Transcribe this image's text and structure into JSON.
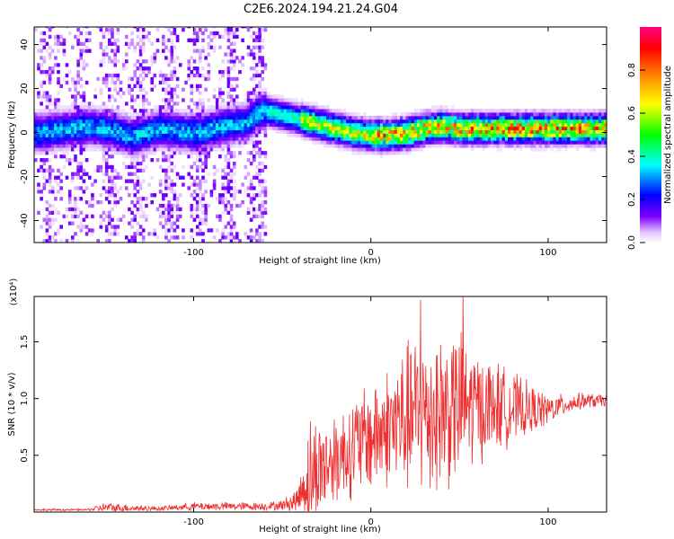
{
  "title": "C2E6.2024.194.21.24.G04",
  "chart_data": [
    {
      "type": "heatmap",
      "xlabel": "Height of straight line (km)",
      "ylabel": "Frequency (Hz)",
      "xlim": [
        -190,
        133
      ],
      "ylim": [
        -50,
        48
      ],
      "x_ticks": [
        -100,
        0,
        100
      ],
      "y_ticks": [
        -40,
        -20,
        0,
        20,
        40
      ],
      "colorbar": {
        "label": "Normalized spectral amplitude",
        "range": [
          0,
          1
        ],
        "ticks": [
          0.0,
          0.2,
          0.4,
          0.6,
          0.8
        ],
        "colors": [
          "#ffffff",
          "#e0c0ff",
          "#8000ff",
          "#0000ff",
          "#00ffff",
          "#00ff00",
          "#ffff00",
          "#ff8000",
          "#ff0000",
          "#ff0080"
        ]
      },
      "ridge": {
        "x": [
          -190,
          -170,
          -160,
          -145,
          -135,
          -120,
          -100,
          -85,
          -70,
          -65,
          -60,
          -55,
          -50,
          -40,
          -30,
          -20,
          -10,
          0,
          10,
          20,
          30,
          40,
          50,
          60,
          80,
          100,
          120,
          133
        ],
        "frequency": [
          -1,
          1,
          2,
          0,
          -3,
          1,
          -1,
          2,
          4,
          8,
          9,
          8,
          7,
          5,
          3,
          1,
          -1,
          -2,
          -2,
          -1,
          1,
          2,
          1,
          1,
          1,
          1,
          1,
          1
        ]
      },
      "broadband_noise_region": [
        -190,
        -60
      ]
    },
    {
      "type": "line",
      "xlabel": "Height of straight line (km)",
      "ylabel": "SNR (10 * v/v)",
      "y_multiplier": "(x10⁴)",
      "xlim": [
        -190,
        133
      ],
      "ylim": [
        0,
        1.9
      ],
      "x_ticks": [
        -100,
        0,
        100
      ],
      "y_ticks": [
        0.5,
        1.0,
        1.5
      ],
      "color": "#ee3030",
      "series": [
        {
          "envelope_x": [
            -190,
            -160,
            -150,
            -120,
            -100,
            -80,
            -60,
            -50,
            -42,
            -38,
            -35,
            -30,
            -20,
            -10,
            0,
            10,
            20,
            30,
            40,
            50,
            60,
            70,
            80,
            90,
            100,
            110,
            120,
            133
          ],
          "baseline": [
            0.02,
            0.02,
            0.04,
            0.03,
            0.05,
            0.05,
            0.05,
            0.06,
            0.1,
            0.22,
            0.3,
            0.38,
            0.48,
            0.57,
            0.66,
            0.75,
            0.82,
            0.87,
            0.9,
            0.92,
            0.93,
            0.93,
            0.92,
            0.9,
            0.9,
            0.95,
            0.98,
            0.98
          ],
          "spike_amplitude": [
            0.01,
            0.01,
            0.05,
            0.02,
            0.04,
            0.04,
            0.04,
            0.05,
            0.12,
            0.25,
            0.6,
            0.5,
            0.45,
            0.5,
            0.55,
            0.6,
            0.75,
            0.85,
            0.8,
            0.75,
            0.55,
            0.45,
            0.35,
            0.25,
            0.15,
            0.1,
            0.08,
            0.06
          ],
          "peaks": [
            {
              "x": 28,
              "y": 1.87
            },
            {
              "x": 52,
              "y": 1.9
            }
          ]
        }
      ]
    }
  ]
}
